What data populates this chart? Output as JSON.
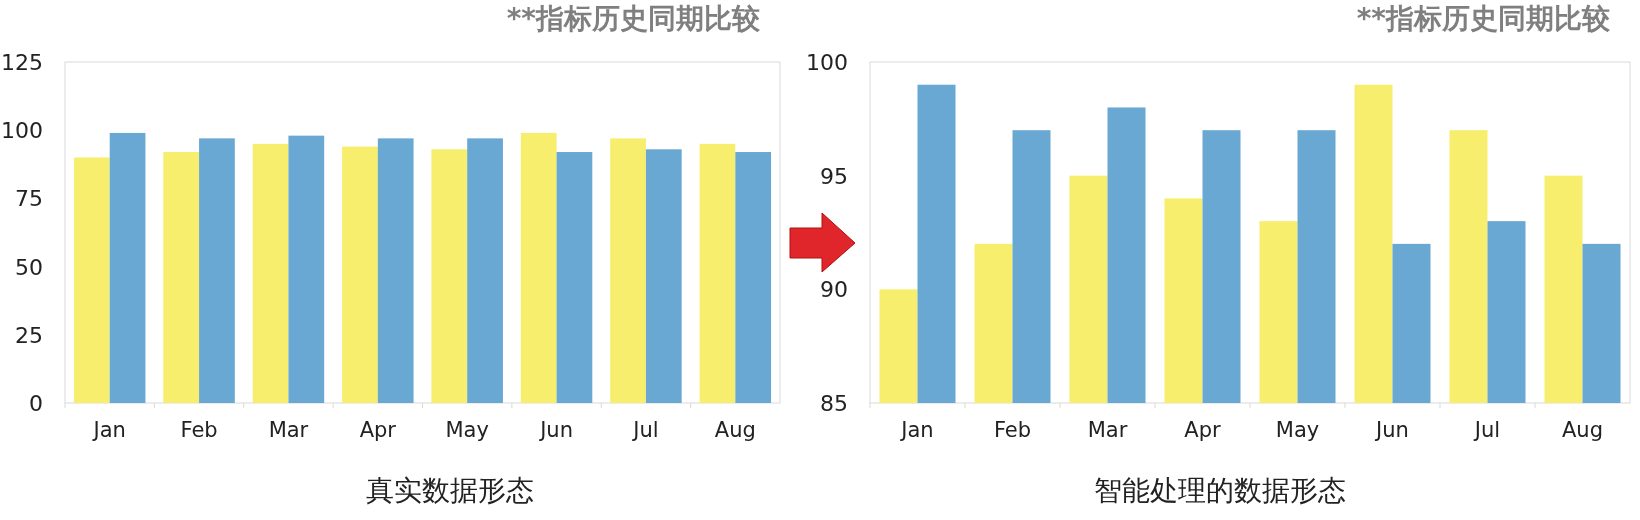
{
  "chart_data": [
    {
      "type": "bar",
      "title": "**指标历史同期比较",
      "categories": [
        "Jan",
        "Feb",
        "Mar",
        "Apr",
        "May",
        "Jun",
        "Jul",
        "Aug"
      ],
      "series": [
        {
          "color": "#f7ee6e",
          "values": [
            90,
            92,
            95,
            94,
            93,
            99,
            97,
            95
          ]
        },
        {
          "color": "#6aa8d4",
          "values": [
            99,
            97,
            98,
            97,
            97,
            92,
            93,
            92
          ]
        }
      ],
      "ylim": [
        0,
        125
      ],
      "yticks": [
        0,
        25,
        50,
        75,
        100,
        125
      ],
      "grid": false,
      "annotations": [
        "真实数据形态"
      ]
    },
    {
      "type": "bar",
      "title": "**指标历史同期比较",
      "categories": [
        "Jan",
        "Feb",
        "Mar",
        "Apr",
        "May",
        "Jun",
        "Jul",
        "Aug"
      ],
      "series": [
        {
          "color": "#f7ee6e",
          "values": [
            90,
            92,
            95,
            94,
            93,
            99,
            97,
            95
          ]
        },
        {
          "color": "#6aa8d4",
          "values": [
            99,
            97,
            98,
            97,
            97,
            92,
            93,
            92
          ]
        }
      ],
      "ylim": [
        85,
        100
      ],
      "yticks": [
        85,
        90,
        95,
        100
      ],
      "grid": false,
      "annotations": [
        "智能处理的数据形态"
      ]
    }
  ]
}
